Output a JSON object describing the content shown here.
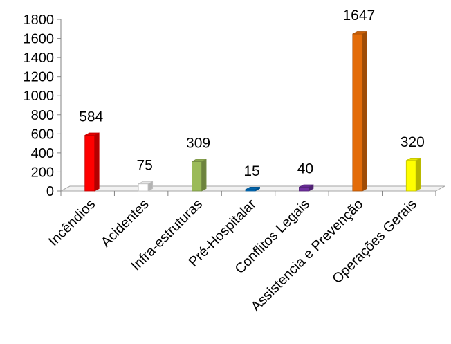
{
  "chart_data": {
    "type": "bar",
    "title": "",
    "xlabel": "",
    "ylabel": "",
    "ylim": [
      0,
      1800
    ],
    "yticks": [
      "0",
      "200",
      "400",
      "600",
      "800",
      "1000",
      "1200",
      "1400",
      "1600",
      "1800"
    ],
    "categories": [
      "Incêndios",
      "Acidentes",
      "Infra-estruturas",
      "Pré-Hospitalar",
      "Conflitos Legais",
      "Assistencia e Prevenção",
      "Operações Gerais"
    ],
    "values": [
      584,
      75,
      309,
      15,
      40,
      1647,
      320
    ],
    "value_labels": [
      "584",
      "75",
      "309",
      "15",
      "40",
      "1647",
      "320"
    ],
    "colors": [
      "#ff0000",
      "#ffffff",
      "#9bbb59",
      "#0070c0",
      "#7030a0",
      "#e36c09",
      "#ffff00"
    ],
    "grid": false,
    "legend": "none",
    "style": "3d-column"
  }
}
